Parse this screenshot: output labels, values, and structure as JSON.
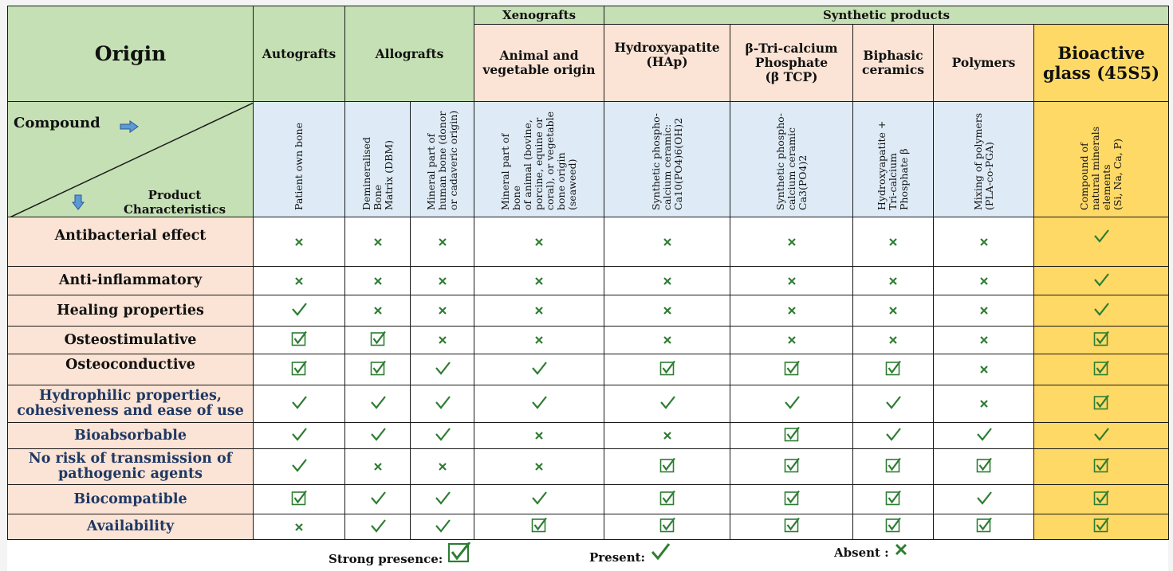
{
  "group_headers": {
    "xenografts": "Xenografts",
    "synthetic": "Synthetic products"
  },
  "headers": {
    "origin": "Origin",
    "autografts": "Autografts",
    "allografts": "Allografts",
    "animal": [
      "Animal and",
      "vegetable origin"
    ],
    "hap": [
      "Hydroxyapatite",
      "(HAp)"
    ],
    "btcp": [
      "β-Tri-calcium",
      "Phosphate",
      "(β TCP)"
    ],
    "biphasic": [
      "Biphasic",
      "ceramics"
    ],
    "polymers": "Polymers",
    "bioglass": [
      "Bioactive",
      "glass (45S5)"
    ]
  },
  "diagonal": {
    "compound": "Compound",
    "characteristics": "Product Characteristics"
  },
  "compounds": [
    [
      "Patient own bone"
    ],
    [
      "Demineralised Bone",
      "Matrix  (DBM)"
    ],
    [
      "Mineral part of",
      "human bone  (donor",
      "or cadaveric origin)"
    ],
    [
      "Mineral part of bone",
      "of animal (bovine,",
      "porcine, equine or",
      "coral), or vegetable",
      "bone origin",
      "(seaweed)"
    ],
    [
      "Synthetic phospho-",
      "calcium ceramic:",
      "Ca10(PO4)6(OH)2"
    ],
    [
      "Synthetic phospho-",
      "calcium ceramic",
      "Ca3(PO4)2"
    ],
    [
      "Hydroxyapatite +",
      "Tri-calcium",
      "Phosphate β"
    ],
    [
      "Mixing of polymers",
      "(PLA-co-PGA)"
    ],
    [
      "Compound of",
      "natural minerals",
      "elements",
      "(Si, Na, Ca, P)"
    ]
  ],
  "rows": [
    {
      "label": [
        "Antibacterial effect"
      ],
      "marks": [
        "absent",
        "absent",
        "absent",
        "absent",
        "absent",
        "absent",
        "absent",
        "absent",
        "present"
      ]
    },
    {
      "label": [
        "Anti-inflammatory"
      ],
      "marks": [
        "absent",
        "absent",
        "absent",
        "absent",
        "absent",
        "absent",
        "absent",
        "absent",
        "present"
      ]
    },
    {
      "label": [
        "Healing properties"
      ],
      "marks": [
        "present",
        "absent",
        "absent",
        "absent",
        "absent",
        "absent",
        "absent",
        "absent",
        "present"
      ]
    },
    {
      "label": [
        "Osteostimulative"
      ],
      "marks": [
        "strong",
        "strong",
        "absent",
        "absent",
        "absent",
        "absent",
        "absent",
        "absent",
        "strong"
      ]
    },
    {
      "label": [
        "Osteoconductive"
      ],
      "marks": [
        "strong",
        "strong",
        "present",
        "present",
        "strong",
        "strong",
        "strong",
        "absent",
        "strong"
      ]
    },
    {
      "label": [
        "Hydrophilic properties,",
        "cohesiveness and ease of use"
      ],
      "marks": [
        "present",
        "present",
        "present",
        "present",
        "present",
        "present",
        "present",
        "absent",
        "strong"
      ]
    },
    {
      "label": [
        "Bioabsorbable"
      ],
      "marks": [
        "present",
        "present",
        "present",
        "absent",
        "absent",
        "strong",
        "present",
        "present",
        "present"
      ]
    },
    {
      "label": [
        "No risk of transmission of",
        "pathogenic agents"
      ],
      "marks": [
        "present",
        "absent",
        "absent",
        "absent",
        "strong",
        "strong",
        "strong",
        "strong",
        "strong"
      ]
    },
    {
      "label": [
        "Biocompatible"
      ],
      "marks": [
        "strong",
        "present",
        "present",
        "present",
        "strong",
        "strong",
        "strong",
        "present",
        "strong"
      ]
    },
    {
      "label": [
        "Availability"
      ],
      "marks": [
        "absent",
        "present",
        "present",
        "strong",
        "strong",
        "strong",
        "strong",
        "strong",
        "strong"
      ]
    }
  ],
  "legend": {
    "strong": "Strong presence:",
    "present": "Present:",
    "absent": "Absent :"
  },
  "colors": {
    "origin_green": "#c5e0b4",
    "header_peach": "#fbe4d5",
    "compound_blue": "#deebf7",
    "bioglass_gold": "#ffd966",
    "label_red": "#c00000",
    "label_navy": "#1f3864",
    "mark_green": "#2e7d32",
    "arrow_blue": "#4472c4"
  }
}
